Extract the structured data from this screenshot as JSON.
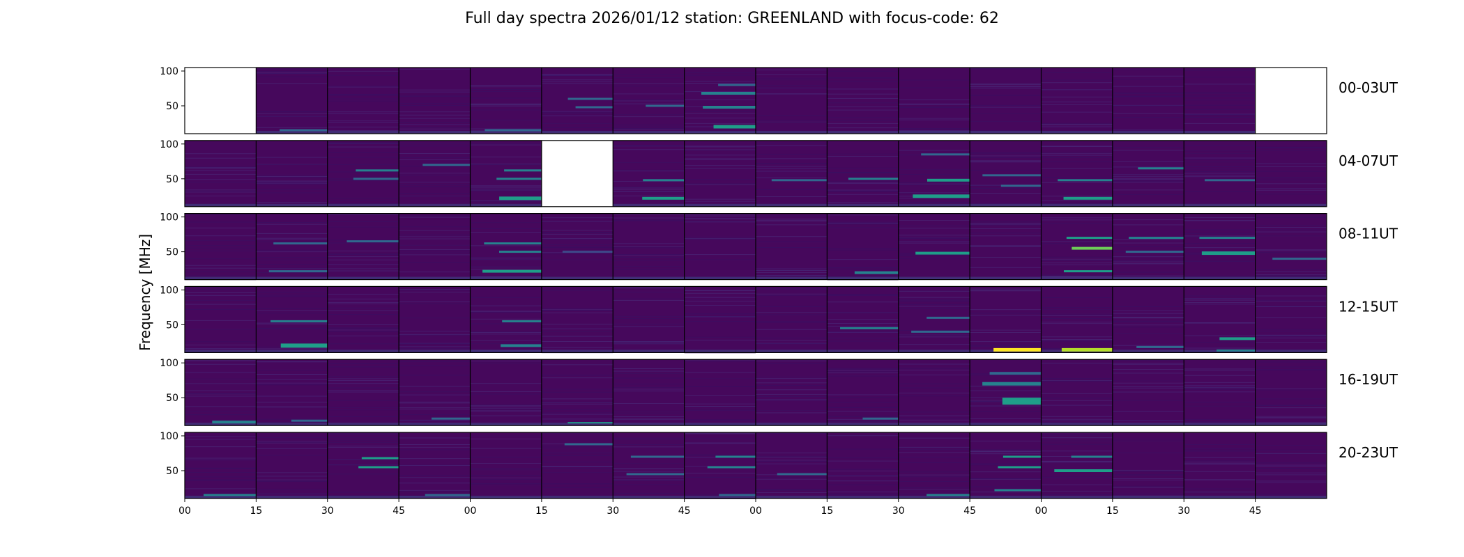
{
  "chart_data": {
    "type": "heatmap",
    "title": "Full day spectra 2026/01/12 station: GREENLAND with focus-code: 62",
    "ylabel": "Frequency [MHz]",
    "xlabel": "",
    "ylim": [
      10,
      105
    ],
    "y_ticks": [
      50,
      100
    ],
    "x_ticks": [
      "00",
      "15",
      "30",
      "45",
      "00",
      "15",
      "30",
      "45",
      "00",
      "15",
      "30",
      "45",
      "00",
      "15",
      "30",
      "45"
    ],
    "colormap": [
      "#440154",
      "#482878",
      "#3e4989",
      "#31688e",
      "#26828e",
      "#1f9e89",
      "#35b779",
      "#6ece58",
      "#b5de2b",
      "#fde725"
    ],
    "panels_per_row": 16,
    "rows": [
      {
        "label": "00-03UT",
        "missing": [
          0,
          15
        ],
        "bands": [
          {
            "panel": 1,
            "f": 15,
            "w": 3,
            "a": 0.35
          },
          {
            "panel": 4,
            "f": 15,
            "w": 3,
            "a": 0.3
          },
          {
            "panel": 5,
            "f": 60,
            "w": 3,
            "a": 0.35
          },
          {
            "panel": 5,
            "f": 48,
            "w": 3,
            "a": 0.35
          },
          {
            "panel": 6,
            "f": 50,
            "w": 3,
            "a": 0.35
          },
          {
            "panel": 7,
            "f": 20,
            "w": 5,
            "a": 0.6
          },
          {
            "panel": 7,
            "f": 48,
            "w": 4,
            "a": 0.45
          },
          {
            "panel": 7,
            "f": 68,
            "w": 4,
            "a": 0.45
          },
          {
            "panel": 7,
            "f": 80,
            "w": 3,
            "a": 0.3
          }
        ]
      },
      {
        "label": "04-07UT",
        "missing": [
          5
        ],
        "bands": [
          {
            "panel": 2,
            "f": 62,
            "w": 3,
            "a": 0.4
          },
          {
            "panel": 2,
            "f": 50,
            "w": 3,
            "a": 0.35
          },
          {
            "panel": 3,
            "f": 70,
            "w": 3,
            "a": 0.3
          },
          {
            "panel": 4,
            "f": 62,
            "w": 3,
            "a": 0.45
          },
          {
            "panel": 4,
            "f": 50,
            "w": 3,
            "a": 0.45
          },
          {
            "panel": 4,
            "f": 22,
            "w": 5,
            "a": 0.55
          },
          {
            "panel": 6,
            "f": 48,
            "w": 3,
            "a": 0.45
          },
          {
            "panel": 6,
            "f": 22,
            "w": 4,
            "a": 0.55
          },
          {
            "panel": 8,
            "f": 48,
            "w": 3,
            "a": 0.35
          },
          {
            "panel": 9,
            "f": 50,
            "w": 3,
            "a": 0.4
          },
          {
            "panel": 10,
            "f": 48,
            "w": 4,
            "a": 0.6
          },
          {
            "panel": 10,
            "f": 25,
            "w": 5,
            "a": 0.55
          },
          {
            "panel": 10,
            "f": 85,
            "w": 3,
            "a": 0.35
          },
          {
            "panel": 11,
            "f": 40,
            "w": 3,
            "a": 0.35
          },
          {
            "panel": 11,
            "f": 55,
            "w": 3,
            "a": 0.35
          },
          {
            "panel": 12,
            "f": 48,
            "w": 3,
            "a": 0.45
          },
          {
            "panel": 12,
            "f": 22,
            "w": 4,
            "a": 0.5
          },
          {
            "panel": 13,
            "f": 65,
            "w": 3,
            "a": 0.4
          },
          {
            "panel": 14,
            "f": 48,
            "w": 3,
            "a": 0.35
          }
        ]
      },
      {
        "label": "08-11UT",
        "missing": [],
        "bands": [
          {
            "panel": 1,
            "f": 62,
            "w": 3,
            "a": 0.3
          },
          {
            "panel": 1,
            "f": 22,
            "w": 3,
            "a": 0.3
          },
          {
            "panel": 2,
            "f": 65,
            "w": 3,
            "a": 0.3
          },
          {
            "panel": 4,
            "f": 50,
            "w": 3,
            "a": 0.45
          },
          {
            "panel": 4,
            "f": 62,
            "w": 3,
            "a": 0.4
          },
          {
            "panel": 4,
            "f": 22,
            "w": 4,
            "a": 0.55
          },
          {
            "panel": 5,
            "f": 50,
            "w": 3,
            "a": 0.2
          },
          {
            "panel": 9,
            "f": 20,
            "w": 4,
            "a": 0.4
          },
          {
            "panel": 10,
            "f": 48,
            "w": 4,
            "a": 0.5
          },
          {
            "panel": 12,
            "f": 55,
            "w": 4,
            "a": 0.75
          },
          {
            "panel": 12,
            "f": 70,
            "w": 3,
            "a": 0.5
          },
          {
            "panel": 12,
            "f": 22,
            "w": 3,
            "a": 0.5
          },
          {
            "panel": 13,
            "f": 70,
            "w": 3,
            "a": 0.4
          },
          {
            "panel": 13,
            "f": 50,
            "w": 3,
            "a": 0.35
          },
          {
            "panel": 14,
            "f": 48,
            "w": 5,
            "a": 0.6
          },
          {
            "panel": 14,
            "f": 70,
            "w": 3,
            "a": 0.4
          },
          {
            "panel": 15,
            "f": 40,
            "w": 3,
            "a": 0.3
          }
        ]
      },
      {
        "label": "12-15UT",
        "missing": [],
        "bands": [
          {
            "panel": 1,
            "f": 55,
            "w": 3,
            "a": 0.45
          },
          {
            "panel": 1,
            "f": 20,
            "w": 6,
            "a": 0.6
          },
          {
            "panel": 4,
            "f": 55,
            "w": 3,
            "a": 0.45
          },
          {
            "panel": 4,
            "f": 20,
            "w": 4,
            "a": 0.4
          },
          {
            "panel": 10,
            "f": 60,
            "w": 3,
            "a": 0.35
          },
          {
            "panel": 10,
            "f": 40,
            "w": 3,
            "a": 0.35
          },
          {
            "panel": 11,
            "f": 14,
            "w": 5,
            "a": 1.0
          },
          {
            "panel": 12,
            "f": 14,
            "w": 5,
            "a": 0.85
          },
          {
            "panel": 13,
            "f": 18,
            "w": 3,
            "a": 0.3
          },
          {
            "panel": 14,
            "f": 30,
            "w": 4,
            "a": 0.55
          },
          {
            "panel": 14,
            "f": 13,
            "w": 3,
            "a": 0.45
          },
          {
            "panel": 9,
            "f": 45,
            "w": 3,
            "a": 0.45
          }
        ]
      },
      {
        "label": "16-19UT",
        "missing": [],
        "bands": [
          {
            "panel": 0,
            "f": 15,
            "w": 4,
            "a": 0.45
          },
          {
            "panel": 1,
            "f": 17,
            "w": 3,
            "a": 0.3
          },
          {
            "panel": 3,
            "f": 20,
            "w": 3,
            "a": 0.3
          },
          {
            "panel": 5,
            "f": 14,
            "w": 2,
            "a": 0.6
          },
          {
            "panel": 9,
            "f": 20,
            "w": 3,
            "a": 0.3
          },
          {
            "panel": 11,
            "f": 45,
            "w": 10,
            "a": 0.5
          },
          {
            "panel": 11,
            "f": 70,
            "w": 5,
            "a": 0.45
          },
          {
            "panel": 11,
            "f": 85,
            "w": 4,
            "a": 0.35
          }
        ]
      },
      {
        "label": "20-23UT",
        "missing": [],
        "bands": [
          {
            "panel": 0,
            "f": 15,
            "w": 3,
            "a": 0.4
          },
          {
            "panel": 2,
            "f": 55,
            "w": 3,
            "a": 0.6
          },
          {
            "panel": 2,
            "f": 68,
            "w": 3,
            "a": 0.6
          },
          {
            "panel": 3,
            "f": 15,
            "w": 3,
            "a": 0.3
          },
          {
            "panel": 5,
            "f": 88,
            "w": 3,
            "a": 0.3
          },
          {
            "panel": 6,
            "f": 45,
            "w": 3,
            "a": 0.35
          },
          {
            "panel": 6,
            "f": 70,
            "w": 3,
            "a": 0.35
          },
          {
            "panel": 7,
            "f": 55,
            "w": 3,
            "a": 0.45
          },
          {
            "panel": 7,
            "f": 70,
            "w": 3,
            "a": 0.45
          },
          {
            "panel": 7,
            "f": 15,
            "w": 3,
            "a": 0.35
          },
          {
            "panel": 8,
            "f": 45,
            "w": 3,
            "a": 0.3
          },
          {
            "panel": 10,
            "f": 15,
            "w": 3,
            "a": 0.4
          },
          {
            "panel": 11,
            "f": 55,
            "w": 3,
            "a": 0.6
          },
          {
            "panel": 11,
            "f": 70,
            "w": 3,
            "a": 0.5
          },
          {
            "panel": 11,
            "f": 22,
            "w": 3,
            "a": 0.4
          },
          {
            "panel": 12,
            "f": 50,
            "w": 4,
            "a": 0.55
          },
          {
            "panel": 12,
            "f": 70,
            "w": 3,
            "a": 0.45
          }
        ]
      }
    ]
  }
}
